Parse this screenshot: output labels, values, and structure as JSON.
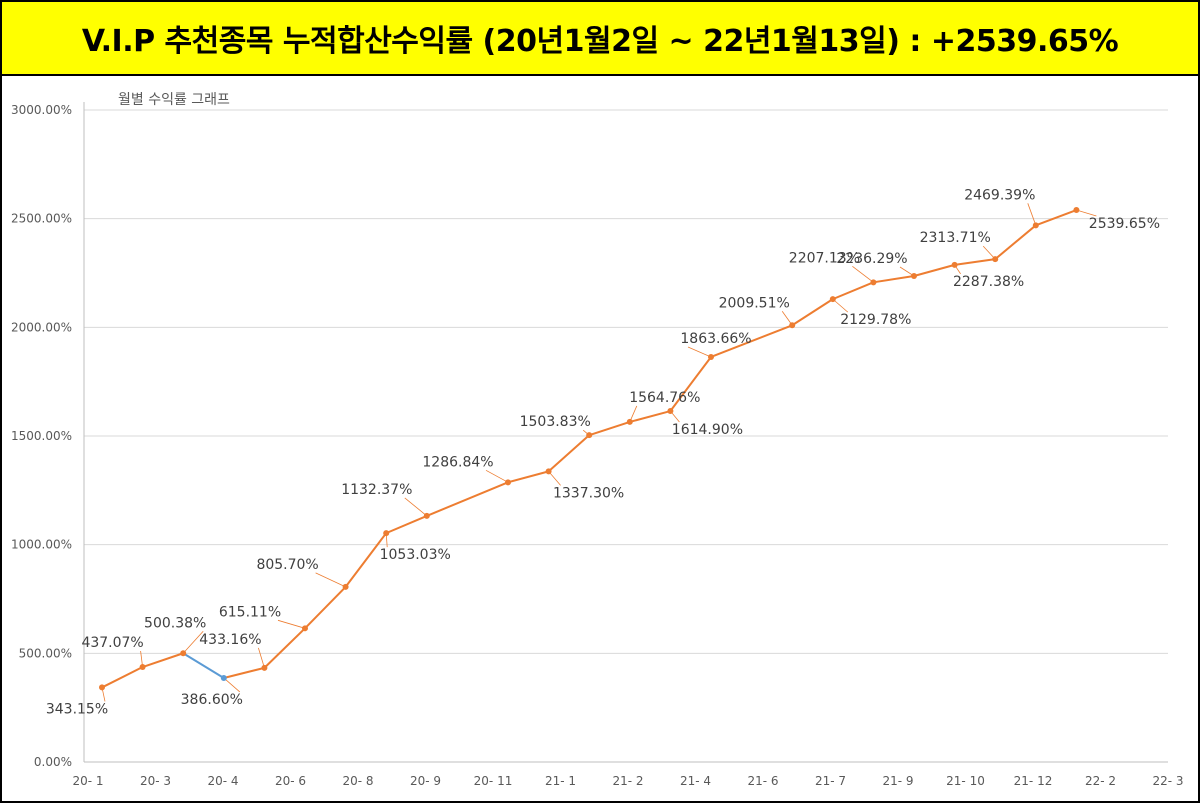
{
  "banner": {
    "text": "V.I.P 추천종목 누적합산수익률 (20년1월2일 ~ 22년1월13일) : +2539.65%",
    "background": "#ffff00"
  },
  "chart_data": {
    "type": "line",
    "title": "월별 수익률 그래프",
    "ylim": [
      0,
      3000
    ],
    "y_ticks": [
      "0.00%",
      "500.00%",
      "1000.00%",
      "1500.00%",
      "2000.00%",
      "2500.00%",
      "3000.00%"
    ],
    "x_ticks": [
      "20- 1",
      "20- 3",
      "20- 4",
      "20- 6",
      "20- 8",
      "20- 9",
      "20- 11",
      "21- 1",
      "21- 2",
      "21- 4",
      "21- 6",
      "21- 7",
      "21- 9",
      "21- 10",
      "21- 12",
      "22- 2",
      "22- 3"
    ],
    "grid": true,
    "line_color": "#ed7d31",
    "highlight_color": "#5b9bd5",
    "highlight_segment_index": 2,
    "points": [
      {
        "x": "20-01",
        "value": 343.15,
        "label": "343.15%"
      },
      {
        "x": "20-02",
        "value": 437.07,
        "label": "437.07%"
      },
      {
        "x": "20-03",
        "value": 500.38,
        "label": "500.38%"
      },
      {
        "x": "20-04",
        "value": 386.6,
        "label": "386.60%"
      },
      {
        "x": "20-05",
        "value": 433.16,
        "label": "433.16%"
      },
      {
        "x": "20-06",
        "value": 615.11,
        "label": "615.11%"
      },
      {
        "x": "20-07",
        "value": 805.7,
        "label": "805.70%"
      },
      {
        "x": "20-08",
        "value": 1053.03,
        "label": "1053.03%"
      },
      {
        "x": "20-09",
        "value": 1132.37,
        "label": "1132.37%"
      },
      {
        "x": "20-11",
        "value": 1286.84,
        "label": "1286.84%"
      },
      {
        "x": "20-12",
        "value": 1337.3,
        "label": "1337.30%"
      },
      {
        "x": "21-01",
        "value": 1503.83,
        "label": "1503.83%"
      },
      {
        "x": "21-02",
        "value": 1564.76,
        "label": "1564.76%"
      },
      {
        "x": "21-03",
        "value": 1614.9,
        "label": "1614.90%"
      },
      {
        "x": "21-04",
        "value": 1863.66,
        "label": "1863.66%"
      },
      {
        "x": "21-06",
        "value": 2009.51,
        "label": "2009.51%"
      },
      {
        "x": "21-07",
        "value": 2129.78,
        "label": "2129.78%"
      },
      {
        "x": "21-08",
        "value": 2207.13,
        "label": "2207.13%"
      },
      {
        "x": "21-09",
        "value": 2236.29,
        "label": "2236.29%"
      },
      {
        "x": "21-10",
        "value": 2287.38,
        "label": "2287.38%"
      },
      {
        "x": "21-11",
        "value": 2313.71,
        "label": "2313.71%"
      },
      {
        "x": "21-12",
        "value": 2469.39,
        "label": "2469.39%"
      },
      {
        "x": "22-01",
        "value": 2539.65,
        "label": "2539.65%"
      }
    ]
  }
}
